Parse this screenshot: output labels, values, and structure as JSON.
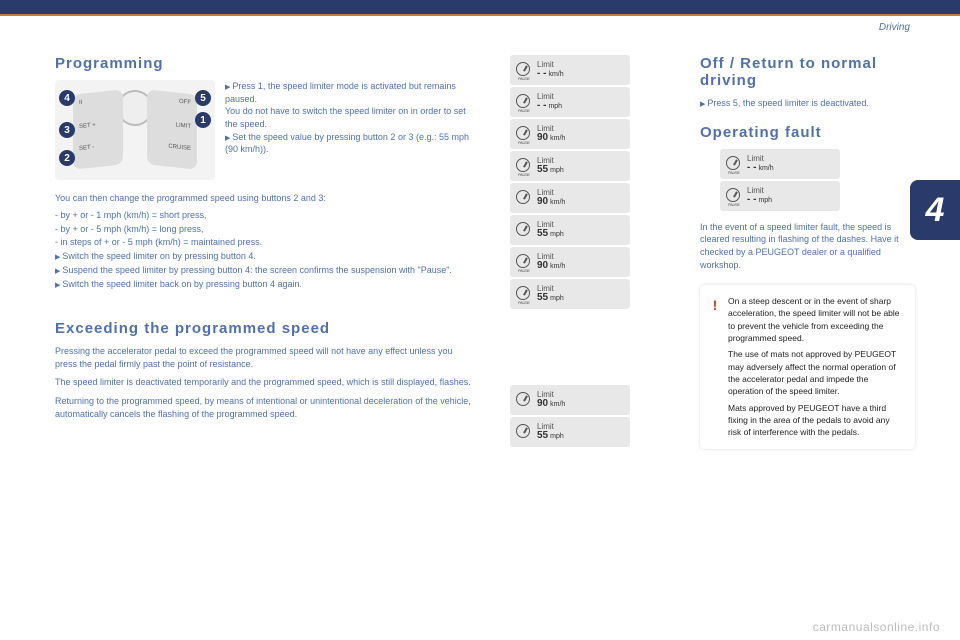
{
  "header": {
    "section_label": "Driving",
    "chapter_number": "4"
  },
  "left": {
    "title_programming": "Programming",
    "diagram": {
      "badges": [
        "1",
        "2",
        "3",
        "4",
        "5"
      ],
      "left_labels": [
        "II",
        "SET +",
        "SET -"
      ],
      "right_labels": [
        "LIMIT",
        "CRUISE"
      ],
      "off_label": "OFF"
    },
    "intro_arrow1": "Press 1, the speed limiter mode is activated but remains paused.",
    "intro_plain": "You do not have to switch the speed limiter on in order to set the speed.",
    "intro_arrow2": "Set the speed value by pressing button 2 or 3 (e.g.: 55 mph (90 km/h)).",
    "list_lead": "You can then change the programmed speed using buttons 2 and 3:",
    "list": [
      "by + or - 1 mph (km/h) = short press,",
      "by + or - 5 mph (km/h) = long press,",
      "in steps of + or - 5 mph (km/h) = maintained press."
    ],
    "arrows_after": [
      "Switch the speed limiter on by pressing button 4.",
      "Suspend the speed limiter by pressing button 4: the screen confirms the suspension with \"Pause\".",
      "Switch the speed limiter back on by pressing button 4 again."
    ],
    "title_exceed": "Exceeding the programmed speed",
    "exceed_p1": "Pressing the accelerator pedal to exceed the programmed speed will not have any effect unless you press the pedal firmly past the point of resistance.",
    "exceed_p2": "The speed limiter is deactivated temporarily and the programmed speed, which is still displayed, flashes.",
    "exceed_p3": "Returning to the programmed speed, by means of intentional or unintentional deceleration of the vehicle, automatically cancels the flashing of the programmed speed."
  },
  "displays": {
    "label": "Limit",
    "stack_top": [
      {
        "pause": true,
        "value": "- -",
        "unit": "km/h"
      },
      {
        "pause": true,
        "value": "- -",
        "unit": "mph"
      },
      {
        "pause": true,
        "value": "90",
        "unit": "km/h"
      },
      {
        "pause": true,
        "value": "55",
        "unit": "mph"
      },
      {
        "pause": false,
        "value": "90",
        "unit": "km/h"
      },
      {
        "pause": false,
        "value": "55",
        "unit": "mph"
      },
      {
        "pause": true,
        "value": "90",
        "unit": "km/h"
      },
      {
        "pause": true,
        "value": "55",
        "unit": "mph"
      }
    ],
    "stack_bottom": [
      {
        "pause": false,
        "value": "90",
        "unit": "km/h"
      },
      {
        "pause": false,
        "value": "55",
        "unit": "mph"
      }
    ]
  },
  "right": {
    "title_off": "Off / Return to normal driving",
    "off_arrow": "Press 5, the speed limiter is deactivated.",
    "title_fault": "Operating fault",
    "fault_pair": [
      {
        "pause": true,
        "value": "- -",
        "unit": "km/h"
      },
      {
        "pause": true,
        "value": "- -",
        "unit": "mph"
      }
    ],
    "fault_text": "In the event of a speed limiter fault, the speed is cleared resulting in flashing of the dashes. Have it checked by a PEUGEOT dealer or a qualified workshop.",
    "warn_p1": "On a steep descent or in the event of sharp acceleration, the speed limiter will not be able to prevent the vehicle from exceeding the programmed speed.",
    "warn_p2": "The use of mats not approved by PEUGEOT may adversely affect the normal operation of the accelerator pedal and impede the operation of the speed limiter.",
    "warn_p3": "Mats approved by PEUGEOT have a third fixing in the area of the pedals to avoid any risk of interference with the pedals."
  },
  "footer_url": "carmanualsonline.info",
  "colors": {
    "brand_blue": "#2a3a6a",
    "text_blue": "#5070b0",
    "accent_orange": "#c08030",
    "warn_red": "#d04020",
    "panel_grey": "#e8e8e8"
  }
}
